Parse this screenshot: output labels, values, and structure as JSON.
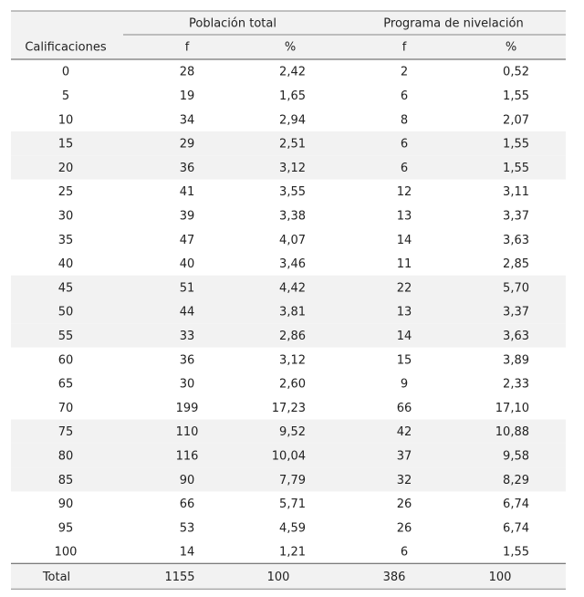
{
  "table": {
    "header": {
      "col0": "Calificaciones",
      "group1": "Población total",
      "group2": "Programa de nivelación",
      "sub": [
        "f",
        "%",
        "f",
        "%"
      ]
    },
    "rows": [
      [
        "0",
        "28",
        "2,42",
        "2",
        "0,52"
      ],
      [
        "5",
        "19",
        "1,65",
        "6",
        "1,55"
      ],
      [
        "10",
        "34",
        "2,94",
        "8",
        "2,07"
      ],
      [
        "15",
        "29",
        "2,51",
        "6",
        "1,55"
      ],
      [
        "20",
        "36",
        "3,12",
        "6",
        "1,55"
      ],
      [
        "25",
        "41",
        "3,55",
        "12",
        "3,11"
      ],
      [
        "30",
        "39",
        "3,38",
        "13",
        "3,37"
      ],
      [
        "35",
        "47",
        "4,07",
        "14",
        "3,63"
      ],
      [
        "40",
        "40",
        "3,46",
        "11",
        "2,85"
      ],
      [
        "45",
        "51",
        "4,42",
        "22",
        "5,70"
      ],
      [
        "50",
        "44",
        "3,81",
        "13",
        "3,37"
      ],
      [
        "55",
        "33",
        "2,86",
        "14",
        "3,63"
      ],
      [
        "60",
        "36",
        "3,12",
        "15",
        "3,89"
      ],
      [
        "65",
        "30",
        "2,60",
        "9",
        "2,33"
      ],
      [
        "70",
        "199",
        "17,23",
        "66",
        "17,10"
      ],
      [
        "75",
        "110",
        "9,52",
        "42",
        "10,88"
      ],
      [
        "80",
        "116",
        "10,04",
        "37",
        "9,58"
      ],
      [
        "85",
        "90",
        "7,79",
        "32",
        "8,29"
      ],
      [
        "90",
        "66",
        "5,71",
        "26",
        "6,74"
      ],
      [
        "95",
        "53",
        "4,59",
        "26",
        "6,74"
      ],
      [
        "100",
        "14",
        "1,21",
        "6",
        "1,55"
      ]
    ],
    "total": [
      "Total",
      "1155",
      "100",
      "386",
      "100"
    ]
  }
}
